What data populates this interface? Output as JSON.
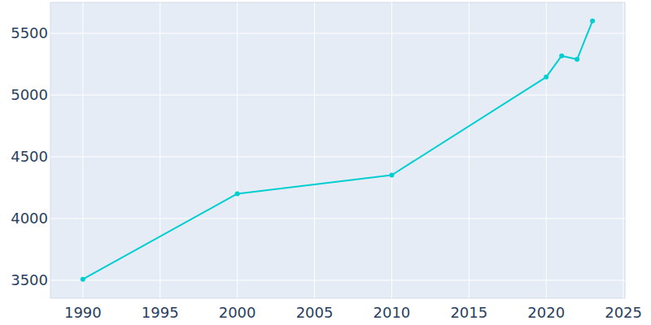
{
  "chart_data": {
    "type": "line",
    "x": [
      1990,
      2000,
      2010,
      2020,
      2021,
      2022,
      2023
    ],
    "values": [
      3508,
      4201,
      4352,
      5146,
      5318,
      5289,
      5601
    ],
    "color": "#00ced1",
    "marker": "circle",
    "xlim": [
      1987.9,
      2025.1
    ],
    "xticks": [
      1990,
      1995,
      2000,
      2005,
      2010,
      2015,
      2020,
      2025
    ],
    "ylim": [
      3355,
      5750
    ],
    "yticks": [
      3500,
      4000,
      4500,
      5000,
      5500
    ],
    "grid": true
  }
}
